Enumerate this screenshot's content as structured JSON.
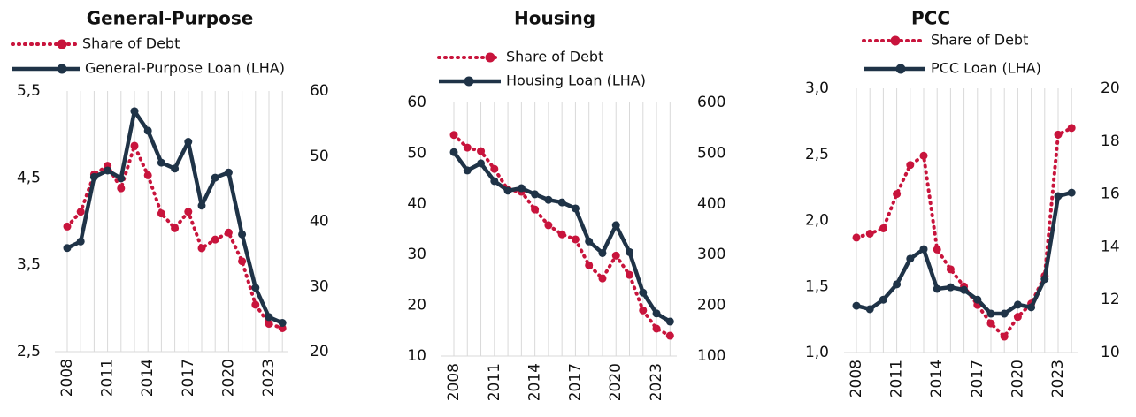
{
  "chart_data": [
    {
      "type": "line",
      "title": "General-Purpose",
      "categories": [
        "2008",
        null,
        null,
        "2011",
        null,
        null,
        "2014",
        null,
        null,
        "2017",
        null,
        null,
        "2020",
        null,
        null,
        "2023",
        null
      ],
      "series": [
        {
          "name": "Share of Debt",
          "color": "#c8143c",
          "style": "dotted",
          "values": [
            3.94,
            4.11,
            4.54,
            4.64,
            4.38,
            4.87,
            4.53,
            4.09,
            3.92,
            4.11,
            3.69,
            3.79,
            3.87,
            3.54,
            3.04,
            2.82,
            2.77
          ]
        },
        {
          "name": "General-Purpose Loan (LHA)",
          "color": "#1f3347",
          "style": "solid",
          "axis": "y2",
          "values": [
            35.9,
            36.9,
            46.8,
            47.8,
            46.6,
            56.9,
            53.9,
            49.0,
            48.1,
            52.2,
            42.4,
            46.7,
            47.5,
            38.0,
            29.8,
            25.3,
            24.4
          ]
        }
      ],
      "ylim": [
        2.5,
        5.5
      ],
      "yticks": [
        {
          "value": 2.5,
          "label": "2,5"
        },
        {
          "value": 3.5,
          "label": "3,5"
        },
        {
          "value": 4.5,
          "label": "4,5"
        },
        {
          "value": 5.5,
          "label": "5,5"
        }
      ],
      "y2lim": [
        20,
        60
      ],
      "y2ticks": [
        20,
        30,
        40,
        50,
        60
      ],
      "grid": true
    },
    {
      "type": "line",
      "title": "Housing",
      "categories": [
        "2008",
        null,
        null,
        "2011",
        null,
        null,
        "2014",
        null,
        null,
        "2017",
        null,
        null,
        "2020",
        null,
        null,
        "2023",
        null
      ],
      "series": [
        {
          "name": "Share of Debt",
          "color": "#c8143c",
          "style": "dotted",
          "values": [
            53.6,
            51.1,
            50.4,
            46.9,
            42.8,
            42.4,
            38.9,
            35.8,
            34.0,
            33.0,
            27.9,
            25.3,
            29.8,
            26.0,
            19.0,
            15.4,
            14.0
          ]
        },
        {
          "name": "Housing Loan (LHA)",
          "color": "#1f3347",
          "style": "solid",
          "axis": "y2",
          "values": [
            502,
            466,
            480,
            445,
            426,
            431,
            419,
            408,
            403,
            391,
            326,
            303,
            358,
            305,
            225,
            184,
            168
          ]
        }
      ],
      "ylim": [
        10,
        60
      ],
      "yticks": [
        10,
        20,
        30,
        40,
        50,
        60
      ],
      "y2lim": [
        100,
        600
      ],
      "y2ticks": [
        100,
        200,
        300,
        400,
        500,
        600
      ],
      "grid": true
    },
    {
      "type": "line",
      "title": "PCC",
      "categories": [
        "2008",
        null,
        null,
        "2011",
        null,
        null,
        "2014",
        null,
        null,
        "2017",
        null,
        null,
        "2020",
        null,
        null,
        "2023",
        null
      ],
      "series": [
        {
          "name": "Share of Debt",
          "color": "#c8143c",
          "style": "dotted",
          "values": [
            1.87,
            1.9,
            1.94,
            2.2,
            2.42,
            2.49,
            1.78,
            1.63,
            1.5,
            1.36,
            1.22,
            1.12,
            1.27,
            1.37,
            1.58,
            2.65,
            2.7
          ]
        },
        {
          "name": "PCC Loan (LHA)",
          "color": "#1f3347",
          "style": "solid",
          "axis": "y2",
          "values": [
            11.77,
            11.64,
            12.0,
            12.58,
            13.55,
            13.91,
            12.41,
            12.47,
            12.37,
            12.0,
            11.47,
            11.47,
            11.81,
            11.71,
            12.78,
            15.92,
            16.05
          ]
        }
      ],
      "ylim": [
        1.0,
        3.0
      ],
      "yticks": [
        {
          "value": 1.0,
          "label": "1,0"
        },
        {
          "value": 1.5,
          "label": "1,5"
        },
        {
          "value": 2.0,
          "label": "2,0"
        },
        {
          "value": 2.5,
          "label": "2,5"
        },
        {
          "value": 3.0,
          "label": "3,0"
        }
      ],
      "y2lim": [
        10,
        20
      ],
      "y2ticks": [
        10,
        12,
        14,
        16,
        18,
        20
      ],
      "grid": true
    }
  ]
}
